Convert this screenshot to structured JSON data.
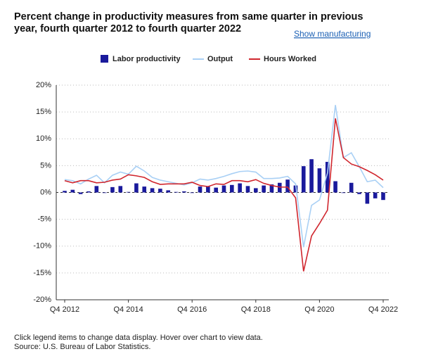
{
  "chart_data": {
    "type": "combo",
    "title": "Percent change in productivity measures from same quarter in previous year, fourth quarter 2012 to fourth quarter 2022",
    "link": "Show manufacturing",
    "notes": [
      "Click legend items to change data display. Hover over chart to view data.",
      "Source: U.S. Bureau of Labor Statistics."
    ],
    "categories": [
      "Q4 2012",
      null,
      null,
      null,
      null,
      null,
      null,
      null,
      "Q4 2014",
      null,
      null,
      null,
      null,
      null,
      null,
      null,
      "Q4 2016",
      null,
      null,
      null,
      null,
      null,
      null,
      null,
      "Q4 2018",
      null,
      null,
      null,
      null,
      null,
      null,
      null,
      "Q4 2020",
      null,
      null,
      null,
      null,
      null,
      null,
      null,
      "Q4 2022"
    ],
    "series": [
      {
        "name": "Labor productivity",
        "type": "bar",
        "color": "#1a1a9c",
        "values": [
          0.3,
          0.5,
          -0.3,
          0.2,
          1.2,
          -0.1,
          1.0,
          1.2,
          0.1,
          1.7,
          1.1,
          0.8,
          0.7,
          0.4,
          0.1,
          0.2,
          -0.1,
          1.1,
          1.1,
          0.9,
          1.3,
          1.4,
          1.7,
          1.2,
          0.8,
          1.3,
          1.5,
          1.8,
          2.4,
          1.3,
          4.9,
          6.2,
          4.5,
          5.7,
          2.1,
          -0.1,
          1.8,
          -0.3,
          -2.1,
          -1.1,
          -1.4
        ]
      },
      {
        "name": "Output",
        "type": "line",
        "color": "#a9d0f5",
        "values": [
          2.4,
          2.2,
          1.6,
          2.5,
          3.2,
          1.8,
          3.2,
          3.8,
          3.4,
          4.9,
          4.0,
          2.8,
          2.3,
          2.0,
          1.7,
          1.4,
          1.8,
          2.5,
          2.3,
          2.6,
          3.0,
          3.5,
          3.9,
          4.0,
          3.8,
          2.6,
          2.6,
          2.7,
          3.0,
          1.6,
          -10.2,
          -2.4,
          -1.4,
          3.6,
          16.3,
          6.5,
          7.4,
          4.8,
          2.0,
          2.3,
          0.9
        ]
      },
      {
        "name": "Hours Worked",
        "type": "line",
        "color": "#d0262e",
        "values": [
          2.2,
          1.8,
          2.2,
          2.2,
          1.8,
          1.9,
          2.3,
          2.5,
          3.3,
          3.1,
          2.8,
          2.0,
          1.5,
          1.6,
          1.6,
          1.6,
          1.9,
          1.3,
          1.1,
          1.6,
          1.5,
          2.2,
          2.2,
          2.0,
          2.4,
          1.7,
          1.3,
          1.0,
          1.0,
          -1.0,
          -14.7,
          -8.1,
          -5.8,
          -3.3,
          13.8,
          6.5,
          5.3,
          4.8,
          4.1,
          3.3,
          2.3
        ]
      }
    ],
    "ylim": [
      -20,
      20
    ],
    "yticks": [
      {
        "value": -20,
        "label": "-20%"
      },
      {
        "value": -15,
        "label": "-15%"
      },
      {
        "value": -10,
        "label": "-10%"
      },
      {
        "value": -5,
        "label": "-5%"
      },
      {
        "value": 0,
        "label": "0%"
      },
      {
        "value": 5,
        "label": "5%"
      },
      {
        "value": 10,
        "label": "10%"
      },
      {
        "value": 15,
        "label": "15%"
      },
      {
        "value": 20,
        "label": "20%"
      }
    ],
    "grid": true
  }
}
